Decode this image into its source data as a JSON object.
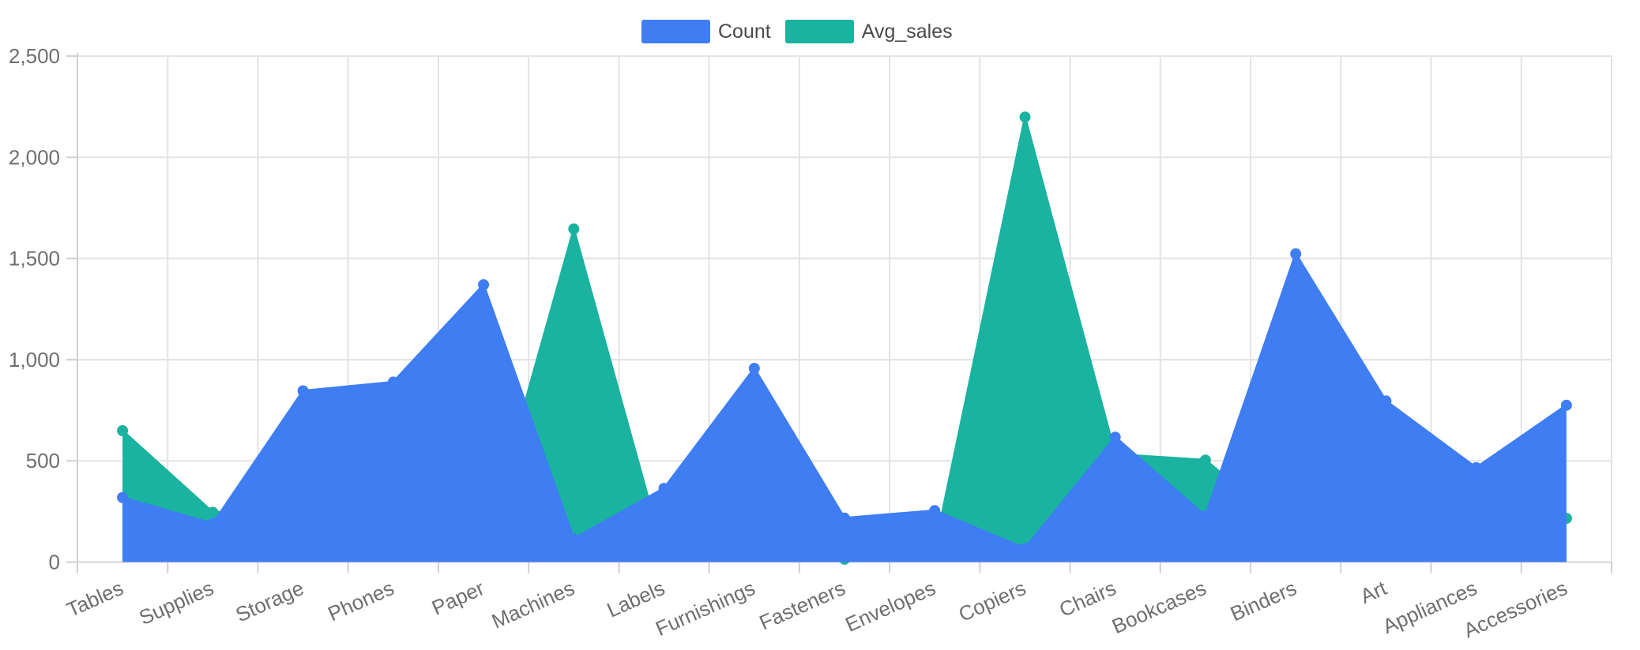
{
  "legend": {
    "items": [
      {
        "label": "Count",
        "color": "#3E7DF2"
      },
      {
        "label": "Avg_sales",
        "color": "#1AB3A0"
      }
    ]
  },
  "chart_data": {
    "type": "area",
    "title": "",
    "xlabel": "",
    "ylabel": "",
    "categories": [
      "Tables",
      "Supplies",
      "Storage",
      "Phones",
      "Paper",
      "Machines",
      "Labels",
      "Furnishings",
      "Fasteners",
      "Envelopes",
      "Copiers",
      "Chairs",
      "Bookcases",
      "Binders",
      "Art",
      "Appliances",
      "Accessories"
    ],
    "series": [
      {
        "name": "Count",
        "color": "#3E7DF2",
        "values": [
          319,
          190,
          846,
          889,
          1370,
          115,
          364,
          957,
          217,
          254,
          68,
          617,
          228,
          1523,
          796,
          466,
          775
        ]
      },
      {
        "name": "Avg_sales",
        "color": "#1AB3A0",
        "values": [
          648.8,
          245.7,
          264.6,
          371.2,
          57.3,
          1645.6,
          34.3,
          91.7,
          13.9,
          64.9,
          2198.9,
          532.3,
          503.9,
          133.6,
          34.1,
          230.8,
          216.0
        ]
      }
    ],
    "draw_order": [
      "Avg_sales",
      "Count"
    ],
    "ylim": [
      0,
      2500
    ],
    "y_ticks": [
      0,
      500,
      1000,
      1500,
      2000,
      2500
    ],
    "y_tick_labels": [
      "0",
      "500",
      "1,000",
      "1,500",
      "2,000",
      "2,500"
    ],
    "grid": true,
    "legend_position": "top-center",
    "style": {
      "grid_color": "#E3E3E3",
      "axis_line_color": "#CFCFCF",
      "baseline_color": "#D6D6D6",
      "tick_label_color": "#6F6F6F",
      "background": "#FFFFFF",
      "marker_radius": 7,
      "line_width": 3
    }
  }
}
